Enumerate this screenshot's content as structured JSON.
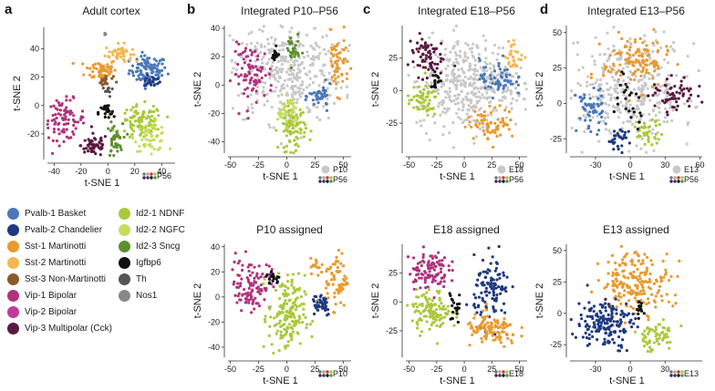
{
  "panel_letters": [
    "a",
    "b",
    "c",
    "d"
  ],
  "legend": {
    "items": [
      {
        "label": "Pvalb-1 Basket",
        "color": "#4a78b8"
      },
      {
        "label": "Pvalb-2 Chandelier",
        "color": "#1f3a80"
      },
      {
        "label": "Sst-1 Martinotti",
        "color": "#e89a2f"
      },
      {
        "label": "Sst-2 Martinotti",
        "color": "#f3b84f"
      },
      {
        "label": "Sst-3 Non-Martinotti",
        "color": "#8b5a2b"
      },
      {
        "label": "Vip-1 Bipolar",
        "color": "#b0337d"
      },
      {
        "label": "Vip-2 Bipolar",
        "color": "#c03a9a"
      },
      {
        "label": "Vip-3 Multipolar (Cck)",
        "color": "#5a1a40"
      },
      {
        "label": "Id2-1 NDNF",
        "color": "#a9c93a"
      },
      {
        "label": "Id2-2 NGFC",
        "color": "#c6dd5a"
      },
      {
        "label": "Id2-3 Sncg",
        "color": "#5e8f2e"
      },
      {
        "label": "Igfbp6",
        "color": "#111111"
      },
      {
        "label": "Th",
        "color": "#555555"
      },
      {
        "label": "Nos1",
        "color": "#888888"
      }
    ]
  },
  "chart_data": [
    {
      "type": "scatter",
      "panel": "a",
      "title": "Adult cortex",
      "xlabel": "t-SNE 1",
      "ylabel": "t-SNE 2",
      "xlim": [
        -45,
        50
      ],
      "ylim": [
        -38,
        55
      ],
      "xticks": [
        -40,
        -20,
        0,
        20,
        40
      ],
      "yticks": [
        -20,
        0,
        20,
        40
      ],
      "legend_entries": [
        {
          "label": "P56",
          "type": "multicolor"
        }
      ],
      "clusters": [
        {
          "name": "Pvalb-1 Basket",
          "center": [
            30,
            25
          ],
          "spread": [
            7,
            5
          ],
          "n": 95
        },
        {
          "name": "Pvalb-2 Chandelier",
          "center": [
            33,
            17
          ],
          "spread": [
            3,
            2
          ],
          "n": 22
        },
        {
          "name": "Sst-1 Martinotti",
          "center": [
            -5,
            25
          ],
          "spread": [
            6,
            4
          ],
          "n": 60
        },
        {
          "name": "Sst-2 Martinotti",
          "center": [
            8,
            37
          ],
          "spread": [
            5,
            3
          ],
          "n": 45
        },
        {
          "name": "Sst-3 Non-Martinotti",
          "center": [
            -2,
            17
          ],
          "spread": [
            3,
            2
          ],
          "n": 18
        },
        {
          "name": "Vip-1 Bipolar",
          "center": [
            -33,
            -10
          ],
          "spread": [
            8,
            7
          ],
          "n": 90
        },
        {
          "name": "Vip-3 Multipolar (Cck)",
          "center": [
            -10,
            -28
          ],
          "spread": [
            5,
            4
          ],
          "n": 55
        },
        {
          "name": "Id2-1 NDNF",
          "center": [
            25,
            -12
          ],
          "spread": [
            8,
            6
          ],
          "n": 95
        },
        {
          "name": "Id2-2 NGFC",
          "center": [
            32,
            -22
          ],
          "spread": [
            6,
            5
          ],
          "n": 55
        },
        {
          "name": "Id2-3 Sncg",
          "center": [
            5,
            -25
          ],
          "spread": [
            3,
            6
          ],
          "n": 40
        },
        {
          "name": "Igfbp6",
          "center": [
            -1,
            -5
          ],
          "spread": [
            3,
            3
          ],
          "n": 25
        },
        {
          "name": "Th",
          "center": [
            0,
            10
          ],
          "spread": [
            2,
            2
          ],
          "n": 10
        },
        {
          "name": "Nos1",
          "center": [
            -2,
            50
          ],
          "spread": [
            1,
            1
          ],
          "n": 3
        }
      ]
    },
    {
      "type": "scatter",
      "panel": "b",
      "title": "Integrated P10–P56",
      "xlabel": "t-SNE 1",
      "ylabel": "t-SNE 2",
      "xlim": [
        -52,
        57
      ],
      "ylim": [
        -48,
        42
      ],
      "xticks": [
        -50,
        -25,
        0,
        25,
        50
      ],
      "yticks": [
        -40,
        -20,
        0,
        20,
        40
      ],
      "legend_entries": [
        {
          "label": "P10",
          "type": "gray"
        },
        {
          "label": "P56",
          "type": "multicolor"
        }
      ],
      "clusters": [
        {
          "name": "P10",
          "center": [
            0,
            10
          ],
          "spread": [
            25,
            18
          ],
          "n": 380
        },
        {
          "name": "Vip-1 Bipolar",
          "center": [
            -30,
            8
          ],
          "spread": [
            9,
            10
          ],
          "n": 85
        },
        {
          "name": "Id2-1 NDNF",
          "center": [
            5,
            -30
          ],
          "spread": [
            6,
            8
          ],
          "n": 90
        },
        {
          "name": "Id2-2 NGFC",
          "center": [
            0,
            -18
          ],
          "spread": [
            4,
            5
          ],
          "n": 35
        },
        {
          "name": "Sst-1 Martinotti",
          "center": [
            45,
            15
          ],
          "spread": [
            5,
            10
          ],
          "n": 60
        },
        {
          "name": "Pvalb-1 Basket",
          "center": [
            30,
            -8
          ],
          "spread": [
            5,
            4
          ],
          "n": 40
        },
        {
          "name": "Id2-3 Sncg",
          "center": [
            5,
            25
          ],
          "spread": [
            3,
            6
          ],
          "n": 30
        },
        {
          "name": "Igfbp6",
          "center": [
            -10,
            20
          ],
          "spread": [
            2,
            3
          ],
          "n": 15
        }
      ]
    },
    {
      "type": "scatter",
      "panel": "b",
      "title": "P10 assigned",
      "xlabel": "t-SNE 1",
      "ylabel": "t-SNE 2",
      "xlim": [
        -52,
        57
      ],
      "ylim": [
        -48,
        42
      ],
      "xticks": [
        -50,
        -25,
        0,
        25,
        50
      ],
      "yticks": [
        -40,
        -20,
        0,
        20,
        40
      ],
      "legend_entries": [
        {
          "label": "P10",
          "type": "multicolor"
        }
      ],
      "clusters": [
        {
          "name": "Vip-1 Bipolar",
          "center": [
            -32,
            10
          ],
          "spread": [
            9,
            10
          ],
          "n": 110
        },
        {
          "name": "Id2-1 NDNF",
          "center": [
            0,
            -15
          ],
          "spread": [
            8,
            16
          ],
          "n": 170
        },
        {
          "name": "Sst-1 Martinotti",
          "center": [
            44,
            14
          ],
          "spread": [
            5,
            11
          ],
          "n": 65
        },
        {
          "name": "Pvalb-2 Chandelier",
          "center": [
            30,
            -5
          ],
          "spread": [
            5,
            5
          ],
          "n": 45
        },
        {
          "name": "Igfbp6",
          "center": [
            -12,
            15
          ],
          "spread": [
            3,
            3
          ],
          "n": 18
        },
        {
          "name": "Sst-1 Martinotti",
          "center": [
            27,
            25
          ],
          "spread": [
            3,
            3
          ],
          "n": 15
        }
      ]
    },
    {
      "type": "scatter",
      "panel": "c",
      "title": "Integrated E18–P56",
      "xlabel": "t-SNE 1",
      "ylabel": "t-SNE 2",
      "xlim": [
        -53,
        57
      ],
      "ylim": [
        -48,
        50
      ],
      "xticks": [
        -50,
        -25,
        0,
        25,
        50
      ],
      "yticks": [
        -25,
        0,
        25
      ],
      "legend_entries": [
        {
          "label": "E18",
          "type": "gray"
        },
        {
          "label": "P56",
          "type": "multicolor"
        }
      ],
      "clusters": [
        {
          "name": "E18",
          "center": [
            5,
            5
          ],
          "spread": [
            24,
            18
          ],
          "n": 420
        },
        {
          "name": "Vip-3 Multipolar (Cck)",
          "center": [
            -35,
            27
          ],
          "spread": [
            8,
            8
          ],
          "n": 70
        },
        {
          "name": "Id2-1 NDNF",
          "center": [
            -38,
            -8
          ],
          "spread": [
            7,
            6
          ],
          "n": 60
        },
        {
          "name": "Pvalb-1 Basket",
          "center": [
            30,
            10
          ],
          "spread": [
            8,
            7
          ],
          "n": 60
        },
        {
          "name": "Sst-1 Martinotti",
          "center": [
            25,
            -25
          ],
          "spread": [
            11,
            6
          ],
          "n": 70
        },
        {
          "name": "Sst-2 Martinotti",
          "center": [
            45,
            27
          ],
          "spread": [
            4,
            6
          ],
          "n": 30
        },
        {
          "name": "Igfbp6",
          "center": [
            -25,
            8
          ],
          "spread": [
            3,
            3
          ],
          "n": 15
        }
      ]
    },
    {
      "type": "scatter",
      "panel": "c",
      "title": "E18 assigned",
      "xlabel": "t-SNE 1",
      "ylabel": "t-SNE 2",
      "xlim": [
        -53,
        57
      ],
      "ylim": [
        -48,
        50
      ],
      "xticks": [
        -50,
        -25,
        0,
        25,
        50
      ],
      "yticks": [
        -25,
        0,
        25
      ],
      "legend_entries": [
        {
          "label": "E18",
          "type": "multicolor"
        }
      ],
      "clusters": [
        {
          "name": "Vip-1 Bipolar",
          "center": [
            -33,
            28
          ],
          "spread": [
            9,
            8
          ],
          "n": 110
        },
        {
          "name": "Id2-1 NDNF",
          "center": [
            -30,
            -8
          ],
          "spread": [
            9,
            9
          ],
          "n": 110
        },
        {
          "name": "Pvalb-2 Chandelier",
          "center": [
            25,
            10
          ],
          "spread": [
            8,
            14
          ],
          "n": 110
        },
        {
          "name": "Sst-1 Martinotti",
          "center": [
            25,
            -25
          ],
          "spread": [
            12,
            7
          ],
          "n": 110
        },
        {
          "name": "Igfbp6",
          "center": [
            -8,
            -3
          ],
          "spread": [
            3,
            8
          ],
          "n": 20
        }
      ]
    },
    {
      "type": "scatter",
      "panel": "d",
      "title": "Integrated E13–P56",
      "xlabel": "t-SNE 1",
      "ylabel": "t-SNE 2",
      "xlim": [
        -52,
        62
      ],
      "ylim": [
        -35,
        55
      ],
      "xticks": [
        -30,
        0,
        30,
        60
      ],
      "yticks": [
        -25,
        0,
        25,
        50
      ],
      "legend_entries": [
        {
          "label": "E13",
          "type": "gray"
        },
        {
          "label": "P56",
          "type": "multicolor"
        }
      ],
      "clusters": [
        {
          "name": "E13",
          "center": [
            0,
            8
          ],
          "spread": [
            28,
            18
          ],
          "n": 380
        },
        {
          "name": "Sst-1 Martinotti",
          "center": [
            5,
            30
          ],
          "spread": [
            14,
            10
          ],
          "n": 120
        },
        {
          "name": "Pvalb-1 Basket",
          "center": [
            -35,
            -5
          ],
          "spread": [
            6,
            8
          ],
          "n": 55
        },
        {
          "name": "Pvalb-2 Chandelier",
          "center": [
            -10,
            -25
          ],
          "spread": [
            5,
            4
          ],
          "n": 30
        },
        {
          "name": "Vip-3 Multipolar (Cck)",
          "center": [
            40,
            5
          ],
          "spread": [
            9,
            6
          ],
          "n": 60
        },
        {
          "name": "Id2-1 NDNF",
          "center": [
            15,
            -20
          ],
          "spread": [
            7,
            4
          ],
          "n": 40
        },
        {
          "name": "Igfbp6",
          "center": [
            0,
            5
          ],
          "spread": [
            8,
            10
          ],
          "n": 25
        }
      ]
    },
    {
      "type": "scatter",
      "panel": "d",
      "title": "E13 assigned",
      "xlabel": "t-SNE 1",
      "ylabel": "t-SNE 2",
      "xlim": [
        -52,
        62
      ],
      "ylim": [
        -35,
        55
      ],
      "xticks": [
        -30,
        0,
        30
      ],
      "yticks": [
        -25,
        0,
        25,
        50
      ],
      "legend_entries": [
        {
          "label": "E13",
          "type": "multicolor"
        }
      ],
      "clusters": [
        {
          "name": "Sst-1 Martinotti",
          "center": [
            5,
            25
          ],
          "spread": [
            15,
            12
          ],
          "n": 200
        },
        {
          "name": "Pvalb-2 Chandelier",
          "center": [
            -22,
            -8
          ],
          "spread": [
            12,
            10
          ],
          "n": 170
        },
        {
          "name": "Id2-1 NDNF",
          "center": [
            22,
            -18
          ],
          "spread": [
            9,
            6
          ],
          "n": 60
        },
        {
          "name": "Igfbp6",
          "center": [
            6,
            3
          ],
          "spread": [
            3,
            3
          ],
          "n": 15
        }
      ]
    }
  ]
}
